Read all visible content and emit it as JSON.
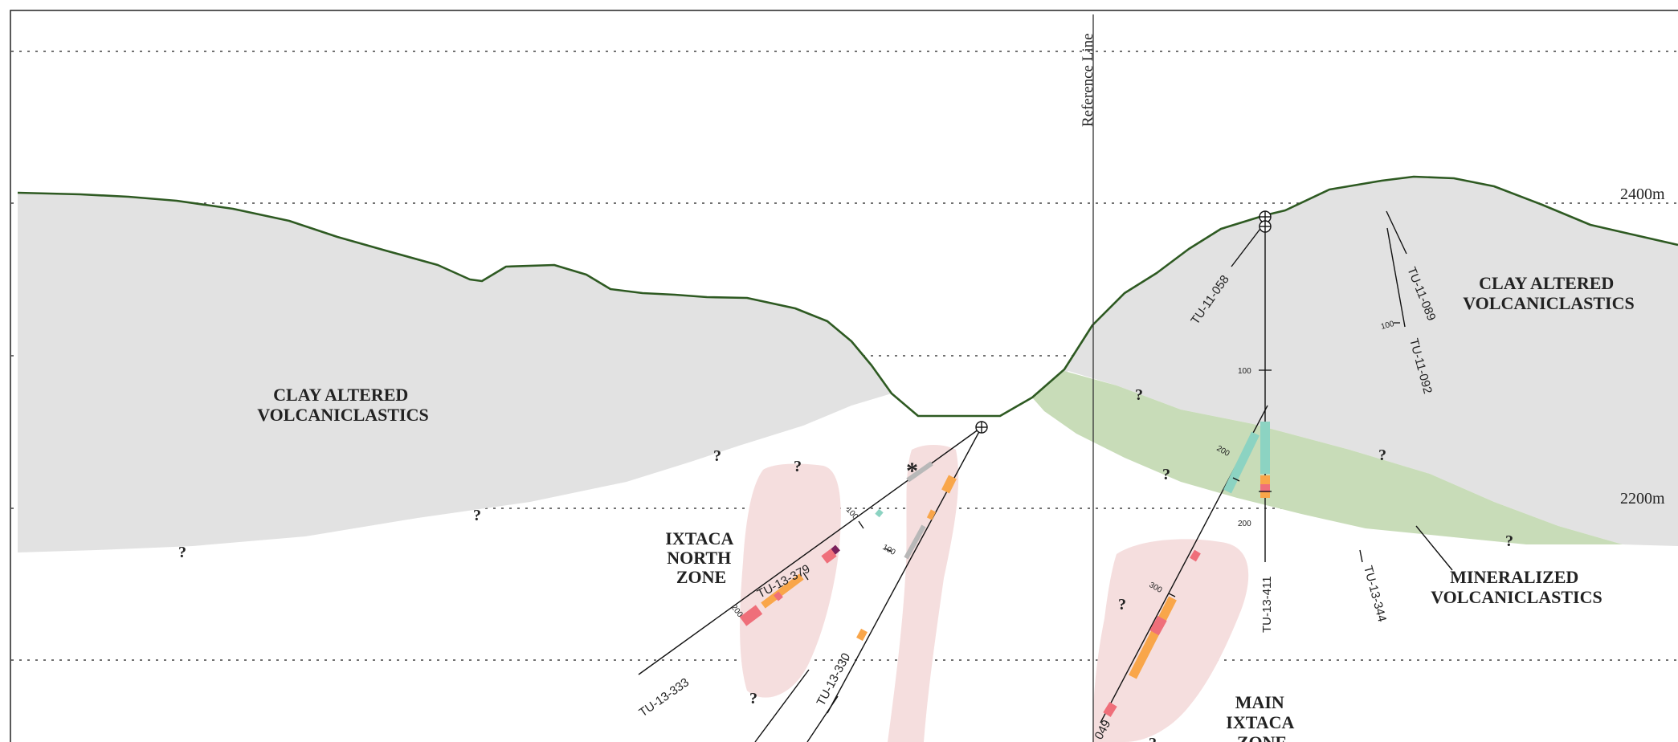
{
  "reference_line": {
    "label": "Reference Line"
  },
  "elevations": {
    "upper": "2400m",
    "lower": "2200m"
  },
  "units": {
    "clay_left": {
      "line1": "CLAY ALTERED",
      "line2": "VOLCANICLASTICS"
    },
    "clay_right": {
      "line1": "CLAY ALTERED",
      "line2": "VOLCANICLASTICS"
    },
    "mineralized": {
      "line1": "MINERALIZED",
      "line2": "VOLCANICLASTICS"
    }
  },
  "zones": {
    "north": {
      "line1": "IXTACA",
      "line2": "NORTH",
      "line3": "ZONE"
    },
    "main": {
      "line1": "MAIN",
      "line2": "IXTACA",
      "line3": "ZONE"
    }
  },
  "drillholes": {
    "tu_13_379": "TU-13-379",
    "tu_13_333": "TU-13-333",
    "tu_13_330": "TU-13-330",
    "tu_11_058": "TU-11-058",
    "tu_11_089": "TU-11-089",
    "tu_11_092": "TU-11-092",
    "tu_13_411": "TU-13-411",
    "tu_13_344": "TU-13-344",
    "partial_049": "049"
  },
  "depth_marks": {
    "n_100_a": "100",
    "n_100_b": "100",
    "n_200": "200",
    "m_100": "100",
    "m_200_a": "200",
    "m_200_b": "200",
    "m_300": "300",
    "r_100": "100"
  },
  "uncertainty_mark": "?",
  "asterisk_mark": "*",
  "colors": {
    "clay_fill": "#e2e2e2",
    "mineralized_fill": "#c8dcb8",
    "zone_fill": "#f5dede",
    "topography": "#2e5a22",
    "orange_interval": "#f9a64a",
    "red_interval": "#ef6f7a",
    "teal_interval": "#8cd3c2",
    "purple_interval": "#7a1f5a",
    "grey_interval": "#b8b8b8"
  }
}
